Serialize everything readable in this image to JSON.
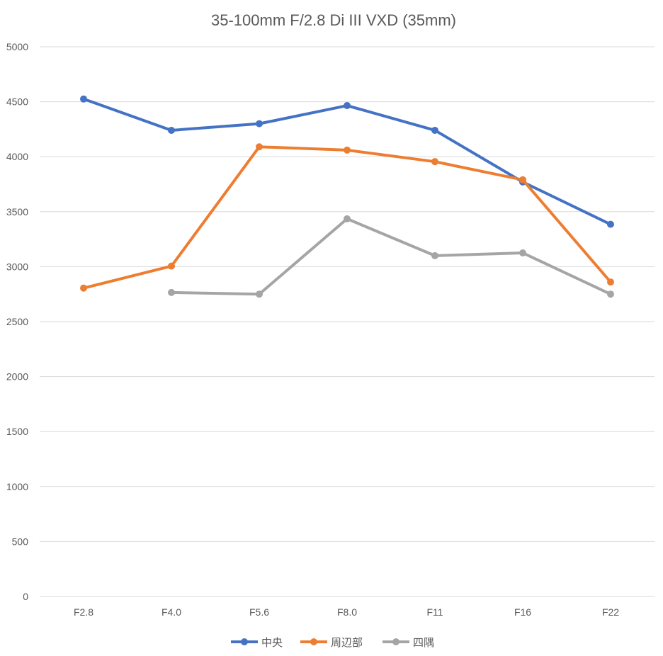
{
  "chart_data": {
    "type": "line",
    "title": "35-100mm F/2.8 Di III VXD (35mm)",
    "xlabel": "",
    "ylabel": "",
    "categories": [
      "F2.8",
      "F4.0",
      "F5.6",
      "F8.0",
      "F11",
      "F16",
      "F22"
    ],
    "ylim": [
      0,
      5000
    ],
    "yticks": [
      0,
      500,
      1000,
      1500,
      2000,
      2500,
      3000,
      3500,
      4000,
      4500,
      5000
    ],
    "grid": true,
    "legend_position": "bottom",
    "series": [
      {
        "name": "中央",
        "color": "#4472C4",
        "values": [
          4525,
          4240,
          4300,
          4465,
          4240,
          3770,
          3385
        ]
      },
      {
        "name": "周辺部",
        "color": "#ED7D31",
        "values": [
          2805,
          3005,
          4090,
          4060,
          3955,
          3790,
          2860
        ]
      },
      {
        "name": "四隅",
        "color": "#A5A5A5",
        "values": [
          null,
          2765,
          2750,
          3435,
          3100,
          3125,
          2750
        ]
      }
    ]
  }
}
